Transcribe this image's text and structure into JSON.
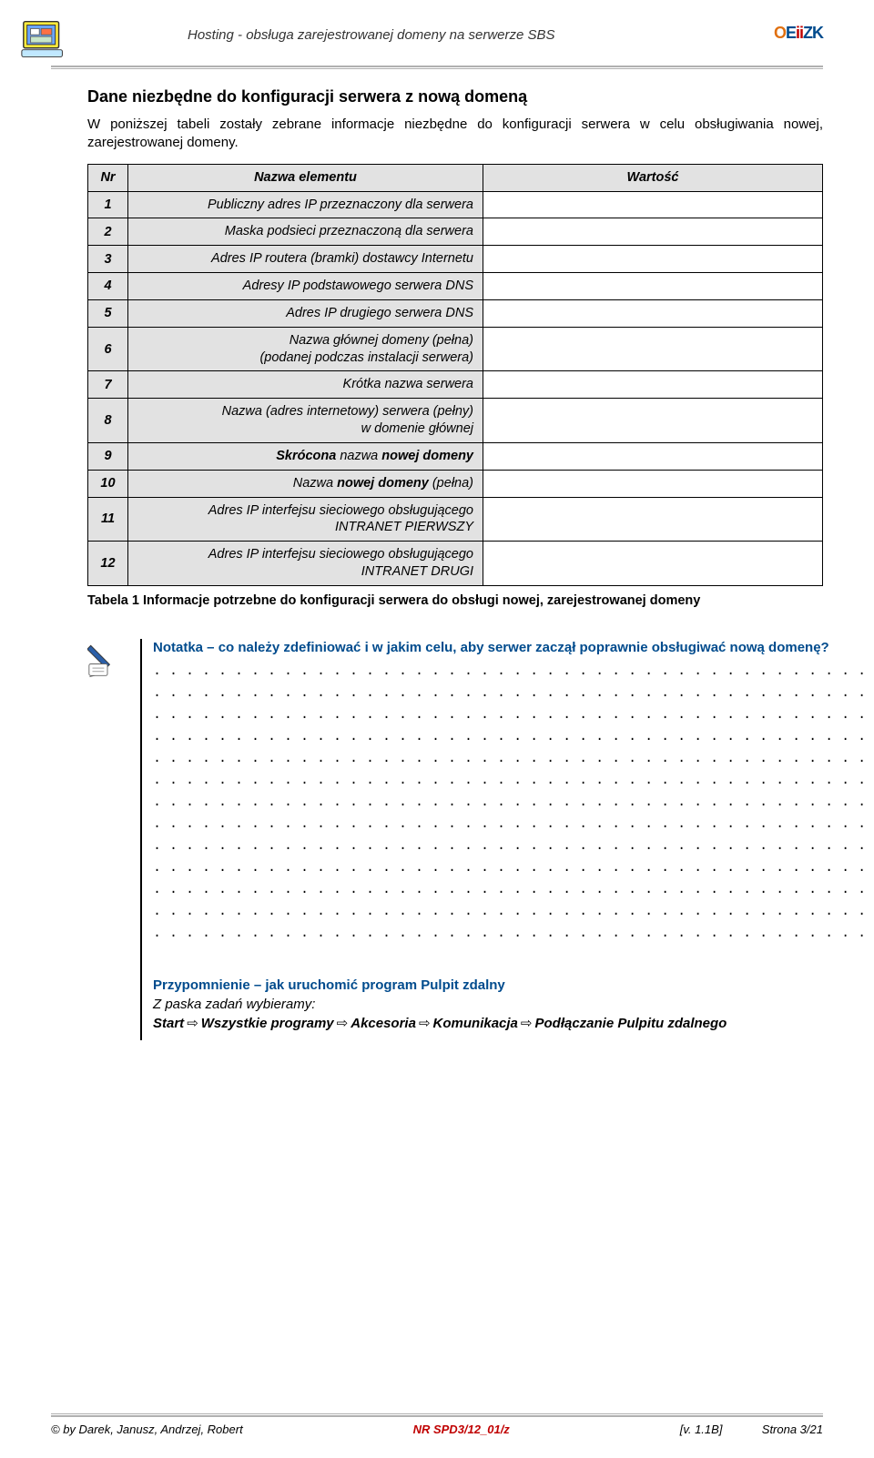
{
  "header": {
    "title": "Hosting - obsługa zarejestrowanej domeny na serwerze SBS",
    "logo": {
      "o": "O",
      "e": "E",
      "ii": "ii",
      "z": "Z",
      "k": "K"
    }
  },
  "section_title": "Dane niezbędne do konfiguracji serwera z nową domeną",
  "intro": "W poniższej tabeli zostały zebrane informacje niezbędne do konfiguracji serwera w celu obsługiwania nowej, zarejestrowanej domeny.",
  "table": {
    "columns": {
      "nr": "Nr",
      "label": "Nazwa elementu",
      "value": "Wartość"
    },
    "rows": [
      {
        "nr": "1",
        "label": "Publiczny adres IP przeznaczony dla serwera",
        "value": ""
      },
      {
        "nr": "2",
        "label": "Maska podsieci przeznaczoną dla serwera",
        "value": ""
      },
      {
        "nr": "3",
        "label": "Adres IP routera (bramki) dostawcy Internetu",
        "value": ""
      },
      {
        "nr": "4",
        "label": "Adresy IP podstawowego serwera DNS",
        "value": ""
      },
      {
        "nr": "5",
        "label": "Adres IP drugiego serwera DNS",
        "value": ""
      },
      {
        "nr": "6",
        "label": "Nazwa głównej domeny (pełna)\n(podanej podczas instalacji serwera)",
        "value": ""
      },
      {
        "nr": "7",
        "label": "Krótka nazwa serwera",
        "value": ""
      },
      {
        "nr": "8",
        "label": "Nazwa (adres internetowy) serwera (pełny)\nw domenie głównej",
        "value": ""
      },
      {
        "nr": "9",
        "label_html": "<b>Skrócona</b> nazwa <b>nowej domeny</b>",
        "value": ""
      },
      {
        "nr": "10",
        "label_html": "Nazwa <b>nowej  domeny</b> (pełna)",
        "value": ""
      },
      {
        "nr": "11",
        "label": "Adres IP interfejsu sieciowego obsługującego\nINTRANET PIERWSZY",
        "value": ""
      },
      {
        "nr": "12",
        "label": "Adres IP interfejsu sieciowego obsługującego\nINTRANET DRUGI",
        "value": ""
      }
    ]
  },
  "caption": "Tabela 1 Informacje potrzebne do konfiguracji serwera do obsługi nowej, zarejestrowanej domeny",
  "note": {
    "title": "Notatka – co należy zdefiniować i w jakim celu, aby serwer zaczął poprawnie obsługiwać nową domenę?",
    "dotted_lines": 13,
    "dotted_pattern": ". . . . . . . . . . . . . . . . . . . . . . . . . . . . . . . . . . . . . . . . . . . . . . . . . . . . . . . . . . . . . . . . . . . . . . . . . . . . . . . . . . . ."
  },
  "reminder": {
    "title": "Przypomnienie – jak uruchomić program Pulpit zdalny",
    "subtitle": "Z paska zadań wybieramy:",
    "path": [
      "Start",
      "Wszystkie programy",
      "Akcesoria",
      "Komunikacja",
      "Podłączanie Pulpitu zdalnego"
    ]
  },
  "footer": {
    "left": "© by Darek, Janusz, Andrzej, Robert",
    "mid": "NR  SPD3/12_01/z",
    "right": "[v. 1.1B]            Strona 3/21"
  },
  "colors": {
    "header_grey": "#e2e2e2",
    "rule_grey": "#b0b0b0",
    "blue": "#004b8d",
    "red": "#c00000",
    "orange": "#e07010"
  }
}
